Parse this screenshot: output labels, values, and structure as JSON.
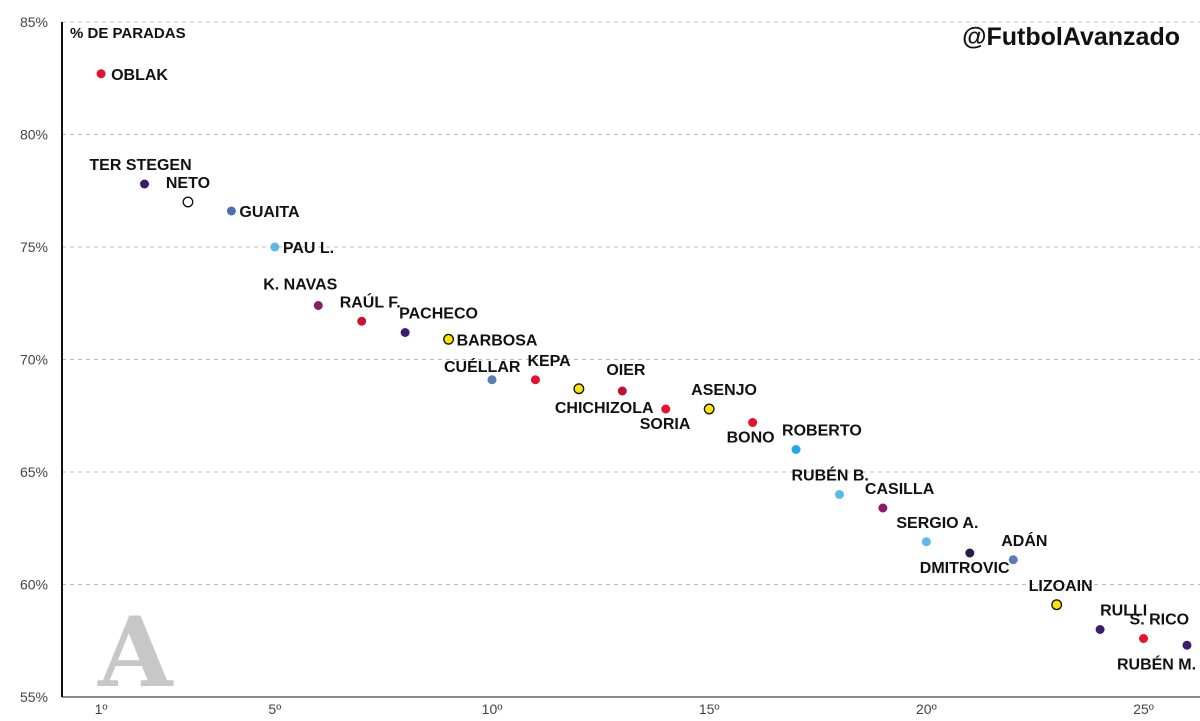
{
  "brand": "@FutbolAvanzado",
  "logo_glyph": "A",
  "chart_data": {
    "type": "scatter",
    "title": "",
    "ylabel": "% DE PARADAS",
    "xlabel": "",
    "xlim": [
      0.1,
      26.3
    ],
    "ylim": [
      55,
      85
    ],
    "xticks": [
      {
        "value": 1,
        "label": "1º"
      },
      {
        "value": 5,
        "label": "5º"
      },
      {
        "value": 10,
        "label": "10º"
      },
      {
        "value": 15,
        "label": "15º"
      },
      {
        "value": 20,
        "label": "20º"
      },
      {
        "value": 25,
        "label": "25º"
      }
    ],
    "yticks": [
      {
        "value": 55,
        "label": "55%"
      },
      {
        "value": 60,
        "label": "60%"
      },
      {
        "value": 65,
        "label": "65%"
      },
      {
        "value": 70,
        "label": "70%"
      },
      {
        "value": 75,
        "label": "75%"
      },
      {
        "value": 80,
        "label": "80%"
      },
      {
        "value": 85,
        "label": "85%"
      }
    ],
    "grid": "horizontal dashed",
    "points": [
      {
        "rank": 1,
        "name": "OBLAK",
        "value": 82.7,
        "color": "#e8112d"
      },
      {
        "rank": 2,
        "name": "TER STEGEN",
        "value": 77.8,
        "color": "#3b1d6e"
      },
      {
        "rank": 3,
        "name": "NETO",
        "value": 77.0,
        "color": "#ffffff"
      },
      {
        "rank": 4,
        "name": "GUAITA",
        "value": 76.6,
        "color": "#4a6fb5"
      },
      {
        "rank": 5,
        "name": "PAU L.",
        "value": 75.0,
        "color": "#5bb8ea"
      },
      {
        "rank": 6,
        "name": "K. NAVAS",
        "value": 72.4,
        "color": "#8b1a6b"
      },
      {
        "rank": 7,
        "name": "RAÚL F.",
        "value": 71.7,
        "color": "#d01030"
      },
      {
        "rank": 8,
        "name": "PACHECO",
        "value": 71.2,
        "color": "#3b1d6e"
      },
      {
        "rank": 9,
        "name": "BARBOSA",
        "value": 70.9,
        "color": "#ffe600"
      },
      {
        "rank": 10,
        "name": "CUÉLLAR",
        "value": 69.1,
        "color": "#5a7ab8"
      },
      {
        "rank": 11,
        "name": "KEPA",
        "value": 69.1,
        "color": "#e8112d"
      },
      {
        "rank": 12,
        "name": "CHICHIZOLA",
        "value": 68.7,
        "color": "#ffe600"
      },
      {
        "rank": 13,
        "name": "OIER",
        "value": 68.6,
        "color": "#c41030"
      },
      {
        "rank": 14,
        "name": "SORIA",
        "value": 67.8,
        "color": "#e8112d"
      },
      {
        "rank": 15,
        "name": "ASENJO",
        "value": 67.8,
        "color": "#ffe600"
      },
      {
        "rank": 16,
        "name": "BONO",
        "value": 67.2,
        "color": "#e8112d"
      },
      {
        "rank": 17,
        "name": "ROBERTO",
        "value": 66.0,
        "color": "#21a8e8"
      },
      {
        "rank": 18,
        "name": "RUBÉN B.",
        "value": 64.0,
        "color": "#5bb8ea"
      },
      {
        "rank": 19,
        "name": "CASILLA",
        "value": 63.4,
        "color": "#8b1a6b"
      },
      {
        "rank": 20,
        "name": "SERGIO A.",
        "value": 61.9,
        "color": "#5bb8ea"
      },
      {
        "rank": 21,
        "name": "DMITROVIC",
        "value": 61.4,
        "color": "#2a1a4a"
      },
      {
        "rank": 22,
        "name": "ADÁN",
        "value": 61.1,
        "color": "#5a7ab8"
      },
      {
        "rank": 23,
        "name": "LIZOAIN",
        "value": 59.1,
        "color": "#ffe600"
      },
      {
        "rank": 24,
        "name": "RULLI",
        "value": 58.0,
        "color": "#3b1d6e"
      },
      {
        "rank": 25,
        "name": "S. RICO",
        "value": 57.6,
        "color": "#e8112d"
      },
      {
        "rank": 26,
        "name": "RUBÉN M.",
        "value": 57.3,
        "color": "#3b1d6e"
      }
    ]
  }
}
